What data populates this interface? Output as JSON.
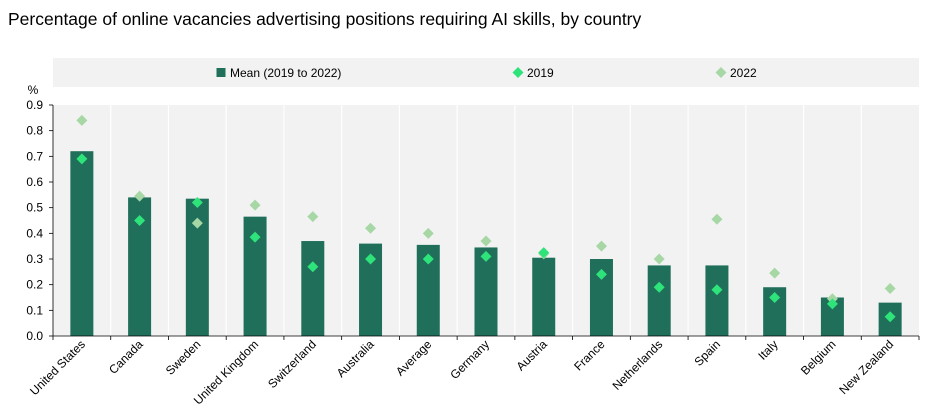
{
  "chart_data": {
    "type": "bar",
    "title": "Percentage of online vacancies advertising positions requiring AI skills, by country",
    "ylabel": "%",
    "ylim": [
      0,
      0.9
    ],
    "yticks": [
      "0.0",
      "0.1",
      "0.2",
      "0.3",
      "0.4",
      "0.5",
      "0.6",
      "0.7",
      "0.8",
      "0.9"
    ],
    "legend_position": "top",
    "categories": [
      "United States",
      "Canada",
      "Sweden",
      "United Kingdom",
      "Switzerland",
      "Australia",
      "Average",
      "Germany",
      "Austria",
      "France",
      "Netherlands",
      "Spain",
      "Italy",
      "Belgium",
      "New Zealand"
    ],
    "series": [
      {
        "name": "Mean (2019 to 2022)",
        "kind": "bar",
        "color": "#1f6f5a",
        "values": [
          0.72,
          0.54,
          0.535,
          0.465,
          0.37,
          0.36,
          0.355,
          0.345,
          0.305,
          0.3,
          0.275,
          0.275,
          0.19,
          0.15,
          0.13
        ]
      },
      {
        "name": "2019",
        "kind": "marker",
        "color": "#2ee37a",
        "values": [
          0.69,
          0.45,
          0.52,
          0.385,
          0.27,
          0.3,
          0.3,
          0.31,
          0.325,
          0.24,
          0.19,
          0.18,
          0.15,
          0.125,
          0.075
        ]
      },
      {
        "name": "2022",
        "kind": "marker",
        "color": "#a6d7a4",
        "values": [
          0.84,
          0.545,
          0.44,
          0.51,
          0.465,
          0.42,
          0.4,
          0.37,
          0.32,
          0.35,
          0.3,
          0.455,
          0.245,
          0.145,
          0.185
        ]
      }
    ],
    "colors": {
      "plot_background": "#f2f2f2",
      "gridline": "#ffffff"
    }
  }
}
